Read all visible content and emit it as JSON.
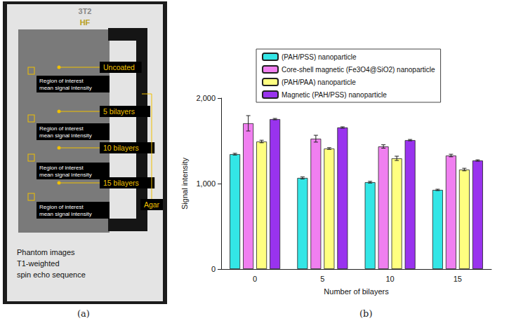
{
  "panel_labels": [
    "(a)",
    "(b)"
  ],
  "photo": {
    "header": [
      "3T2",
      "HF"
    ],
    "arrows": [
      {
        "label": "Uncoated",
        "roi": [
          "Region of interest",
          "mean signal intensity"
        ]
      },
      {
        "label": "5 bilayers",
        "roi": [
          "Region of interest",
          "mean signal intensity"
        ]
      },
      {
        "label": "10 bilayers",
        "roi": [
          "Region of interest",
          "mean signal intensity"
        ]
      },
      {
        "label": "15 bilayers",
        "roi": [
          "Region of interest",
          "mean signal intensity"
        ]
      }
    ],
    "bracket": "Agar",
    "footer": [
      "Phantom images",
      "T1-weighted",
      "spin echo sequence"
    ]
  },
  "chart_data": {
    "type": "bar",
    "x_label": "Number of bilayers",
    "y_label": "Signal intensity",
    "categories": [
      "0",
      "5",
      "10",
      "15"
    ],
    "series": [
      {
        "name": "(PAH/PSS) nanoparticle",
        "color": "#33e6e6",
        "values": [
          1344,
          1066,
          1016,
          926
        ],
        "errors": [
          10,
          12,
          10,
          8
        ]
      },
      {
        "name": "Core-shell magnetic (Fe3O4@SiO2) nanoparticle",
        "color": "#f07ff0",
        "values": [
          1705,
          1525,
          1434,
          1328
        ],
        "errors": [
          90,
          40,
          20,
          15
        ]
      },
      {
        "name": "(PAH/PAA) nanoparticle",
        "color": "#ffff80",
        "values": [
          1492,
          1410,
          1295,
          1164
        ],
        "errors": [
          15,
          10,
          25,
          15
        ]
      },
      {
        "name": "Magnetic (PAH/PSS) nanoparticle",
        "color": "#9933ee",
        "values": [
          1754,
          1656,
          1508,
          1270
        ],
        "errors": [
          8,
          8,
          8,
          8
        ]
      }
    ],
    "ylim": [
      0,
      2000
    ],
    "yticks": [
      0,
      1000,
      2000
    ],
    "grid": false,
    "legend": "top"
  }
}
